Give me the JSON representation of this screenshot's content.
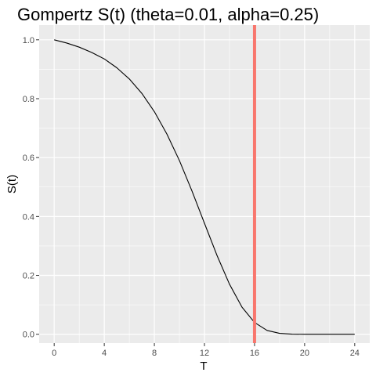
{
  "chart_data": {
    "type": "line",
    "title": "Gompertz S(t) (theta=0.01, alpha=0.25)",
    "xlabel": "T",
    "ylabel": "S(t)",
    "xlim": [
      -1.2,
      25.2
    ],
    "ylim": [
      -0.03,
      1.05
    ],
    "x_ticks": [
      0,
      4,
      8,
      12,
      16,
      20,
      24
    ],
    "y_ticks": [
      0.0,
      0.2,
      0.4,
      0.6,
      0.8,
      1.0
    ],
    "x_tick_labels": [
      "0",
      "4",
      "8",
      "12",
      "16",
      "20",
      "24"
    ],
    "y_tick_labels": [
      "0.0",
      "0.2",
      "0.4",
      "0.6",
      "0.8",
      "1.0"
    ],
    "grid": true,
    "series": [
      {
        "values_x": [
          0,
          1,
          2,
          3,
          4,
          5,
          6,
          7,
          8,
          9,
          10,
          11,
          12,
          13,
          14,
          15,
          16,
          17,
          18,
          19,
          20,
          21,
          22,
          23,
          24
        ],
        "values_y": [
          1.0,
          0.989,
          0.975,
          0.957,
          0.935,
          0.905,
          0.867,
          0.818,
          0.756,
          0.68,
          0.59,
          0.487,
          0.377,
          0.268,
          0.17,
          0.092,
          0.04,
          0.013,
          0.003,
          0.0005,
          0.0,
          0.0,
          0.0,
          0.0,
          0.0
        ],
        "color": "#000000"
      }
    ],
    "vline": {
      "x": 16,
      "color": "#F8766D"
    },
    "panel_color": "#EBEBEB",
    "grid_color": "#FFFFFF"
  }
}
